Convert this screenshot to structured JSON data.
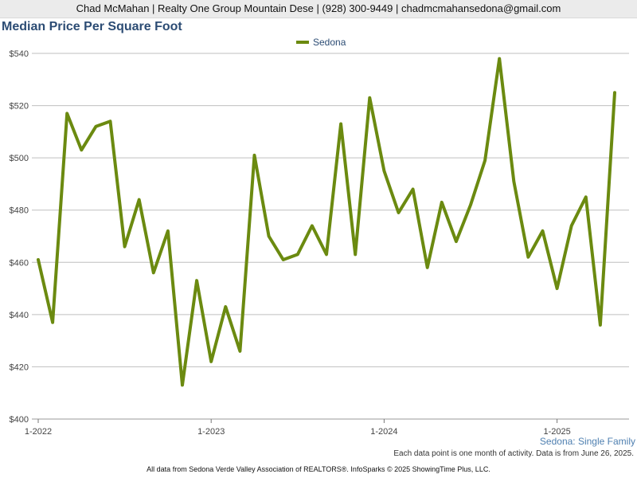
{
  "header": {
    "text": "Chad McMahan | Realty One Group Mountain Dese | (928) 300-9449 | chadmcmahansedona@gmail.com"
  },
  "title": "Median Price Per Square Foot",
  "legend": {
    "label": "Sedona"
  },
  "subtitle": "Sedona: Single Family",
  "note": "Each data point is one month of activity. Data is from June 26, 2025.",
  "footer": "All data from Sedona Verde Valley Association of REALTORS®. InfoSparks © 2025 ShowingTime Plus, LLC.",
  "colors": {
    "series": "#6b8a10",
    "grid": "#bfbfbf",
    "axis_text": "#444444"
  },
  "chart_data": {
    "type": "line",
    "title": "Median Price Per Square Foot",
    "xlabel": "",
    "ylabel": "",
    "ylim": [
      400,
      540
    ],
    "y_ticks": [
      "$400",
      "$420",
      "$440",
      "$460",
      "$480",
      "$500",
      "$520",
      "$540"
    ],
    "y_tick_values": [
      400,
      420,
      440,
      460,
      480,
      500,
      520,
      540
    ],
    "x_tick_labels": [
      "1-2022",
      "1-2023",
      "1-2024",
      "1-2025"
    ],
    "x_tick_months": [
      "2022-01",
      "2023-01",
      "2024-01",
      "2025-01"
    ],
    "grid": true,
    "legend_position": "top-center",
    "series": [
      {
        "name": "Sedona",
        "x": [
          "2022-01",
          "2022-02",
          "2022-03",
          "2022-04",
          "2022-05",
          "2022-06",
          "2022-07",
          "2022-08",
          "2022-09",
          "2022-10",
          "2022-11",
          "2022-12",
          "2023-01",
          "2023-02",
          "2023-03",
          "2023-04",
          "2023-05",
          "2023-06",
          "2023-07",
          "2023-08",
          "2023-09",
          "2023-10",
          "2023-11",
          "2023-12",
          "2024-01",
          "2024-02",
          "2024-03",
          "2024-04",
          "2024-05",
          "2024-06",
          "2024-07",
          "2024-08",
          "2024-09",
          "2024-10",
          "2024-11",
          "2024-12",
          "2025-01",
          "2025-02",
          "2025-03",
          "2025-04",
          "2025-05"
        ],
        "values": [
          461,
          437,
          517,
          503,
          512,
          514,
          466,
          484,
          456,
          472,
          413,
          453,
          422,
          443,
          426,
          501,
          470,
          461,
          463,
          474,
          463,
          513,
          463,
          523,
          495,
          479,
          488,
          458,
          483,
          468,
          482,
          499,
          538,
          491,
          462,
          472,
          450,
          474,
          485,
          436,
          525
        ]
      }
    ]
  }
}
